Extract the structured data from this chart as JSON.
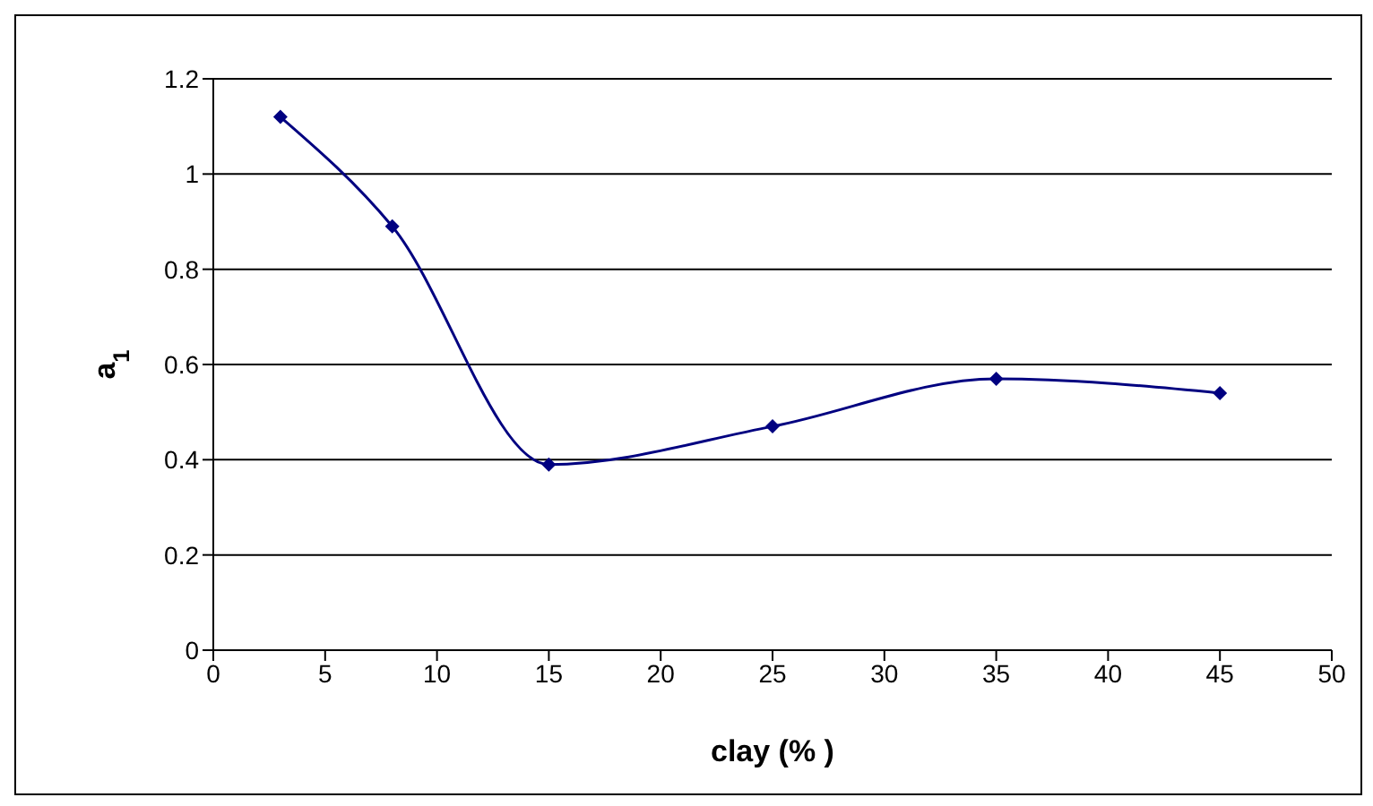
{
  "chart_data": {
    "type": "line",
    "xlabel": "clay (% )",
    "ylabel": "a$_{1}$",
    "x": [
      3,
      8,
      15,
      25,
      35,
      45
    ],
    "series": [
      {
        "color": "#000080",
        "values": [
          1.12,
          0.89,
          0.39,
          0.47,
          0.57,
          0.54
        ]
      }
    ],
    "xlim": [
      0,
      50
    ],
    "xticks": [
      0,
      5,
      10,
      15,
      20,
      25,
      30,
      35,
      40,
      45,
      50
    ],
    "ylim": [
      0,
      1.2
    ],
    "yticks": [
      0,
      0.2,
      0.4,
      0.6,
      0.8,
      1,
      1.2
    ],
    "grid": "y",
    "marker": "diamond",
    "line_style": "solid",
    "legend": false
  }
}
